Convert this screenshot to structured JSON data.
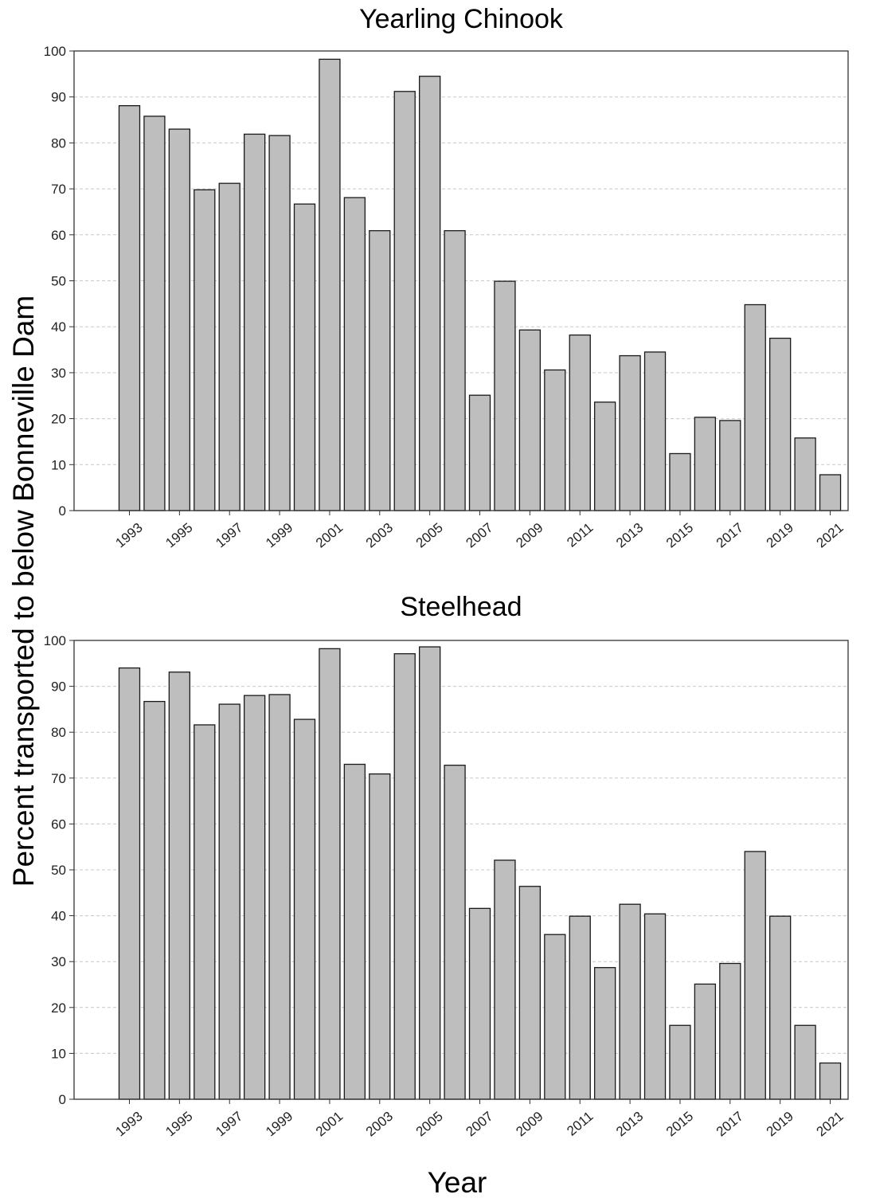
{
  "ylabel": "Percent transported to below Bonneville Dam",
  "xlabel": "Year",
  "colors": {
    "bar_fill": "#bebebe",
    "bar_stroke": "#1a1a1a",
    "grid": "#c8c8c8",
    "axis": "#333333"
  },
  "chart_data": [
    {
      "type": "bar",
      "title": "Yearling Chinook",
      "ylim": [
        0,
        100
      ],
      "yticks": [
        0,
        10,
        20,
        30,
        40,
        50,
        60,
        70,
        80,
        90,
        100
      ],
      "grid": "horizontal dashed",
      "categories": [
        "1993",
        "1994",
        "1995",
        "1996",
        "1997",
        "1998",
        "1999",
        "2000",
        "2001",
        "2002",
        "2003",
        "2004",
        "2005",
        "2006",
        "2007",
        "2008",
        "2009",
        "2010",
        "2011",
        "2012",
        "2013",
        "2014",
        "2015",
        "2016",
        "2017",
        "2018",
        "2019",
        "2020",
        "2021"
      ],
      "tick_labels": [
        "1993",
        "1995",
        "1997",
        "1999",
        "2001",
        "2003",
        "2005",
        "2007",
        "2009",
        "2011",
        "2013",
        "2015",
        "2017",
        "2019",
        "2021"
      ],
      "values": [
        88.1,
        85.8,
        83.0,
        69.8,
        71.2,
        81.9,
        81.6,
        66.7,
        98.2,
        68.1,
        60.9,
        91.2,
        94.5,
        60.9,
        25.1,
        49.9,
        39.3,
        30.6,
        38.2,
        23.6,
        33.7,
        34.5,
        12.4,
        20.3,
        19.6,
        44.8,
        37.5,
        15.8,
        7.8
      ]
    },
    {
      "type": "bar",
      "title": "Steelhead",
      "ylim": [
        0,
        100
      ],
      "yticks": [
        0,
        10,
        20,
        30,
        40,
        50,
        60,
        70,
        80,
        90,
        100
      ],
      "grid": "horizontal dashed",
      "categories": [
        "1993",
        "1994",
        "1995",
        "1996",
        "1997",
        "1998",
        "1999",
        "2000",
        "2001",
        "2002",
        "2003",
        "2004",
        "2005",
        "2006",
        "2007",
        "2008",
        "2009",
        "2010",
        "2011",
        "2012",
        "2013",
        "2014",
        "2015",
        "2016",
        "2017",
        "2018",
        "2019",
        "2020",
        "2021"
      ],
      "tick_labels": [
        "1993",
        "1995",
        "1997",
        "1999",
        "2001",
        "2003",
        "2005",
        "2007",
        "2009",
        "2011",
        "2013",
        "2015",
        "2017",
        "2019",
        "2021"
      ],
      "values": [
        94.0,
        86.7,
        93.1,
        81.6,
        86.1,
        88.0,
        88.2,
        82.8,
        98.2,
        73.0,
        70.9,
        97.1,
        98.6,
        72.8,
        41.6,
        52.1,
        46.4,
        35.9,
        39.9,
        28.7,
        42.5,
        40.4,
        16.1,
        25.1,
        29.6,
        54.0,
        39.9,
        16.1,
        7.9
      ]
    }
  ]
}
